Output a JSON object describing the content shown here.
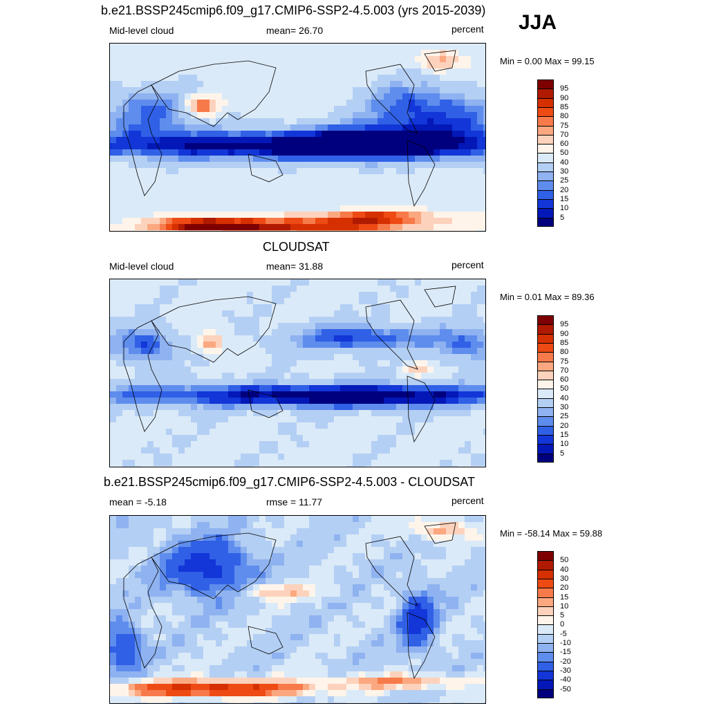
{
  "season": "JJA",
  "panels": [
    {
      "title": "b.e21.BSSP245cmip6.f09_g17.CMIP6-SSP2-4.5.003 (yrs 2015-2039)",
      "left_label": "Mid-level cloud",
      "center_label": "mean=  26.70",
      "right_label": "percent",
      "minmax": "Min =   0.00 Max =  99.15",
      "colorbar": {
        "labels": [
          "95",
          "90",
          "85",
          "80",
          "75",
          "70",
          "60",
          "50",
          "40",
          "30",
          "25",
          "20",
          "15",
          "10",
          "5"
        ],
        "colors": [
          "#7f0000",
          "#b01a00",
          "#d63000",
          "#ee4a14",
          "#f77a4a",
          "#fba880",
          "#fdd2bc",
          "#fff4ea",
          "#dbeaf8",
          "#b4cff4",
          "#8fb2f0",
          "#5f8ded",
          "#3060e6",
          "#1236d8",
          "#0418b8",
          "#00007f"
        ]
      },
      "field": "model"
    },
    {
      "title": "CLOUDSAT",
      "left_label": "Mid-level cloud",
      "center_label": "mean=  31.88",
      "right_label": "percent",
      "minmax": "Min =   0.01 Max =  89.36",
      "colorbar": {
        "labels": [
          "95",
          "90",
          "85",
          "80",
          "75",
          "70",
          "60",
          "50",
          "40",
          "30",
          "25",
          "20",
          "15",
          "10",
          "5"
        ],
        "colors": [
          "#7f0000",
          "#b01a00",
          "#d63000",
          "#ee4a14",
          "#f77a4a",
          "#fba880",
          "#fdd2bc",
          "#fff4ea",
          "#dbeaf8",
          "#b4cff4",
          "#8fb2f0",
          "#5f8ded",
          "#3060e6",
          "#1236d8",
          "#0418b8",
          "#00007f"
        ]
      },
      "field": "obs"
    },
    {
      "title": "b.e21.BSSP245cmip6.f09_g17.CMIP6-SSP2-4.5.003 - CLOUDSAT",
      "left_label": "mean =  -5.18",
      "center_label": "rmse =  11.77",
      "right_label": "percent",
      "minmax": "Min = -58.14 Max =  59.88",
      "colorbar": {
        "labels": [
          "50",
          "40",
          "30",
          "20",
          "15",
          "10",
          "5",
          "0",
          "-5",
          "-10",
          "-15",
          "-20",
          "-30",
          "-40",
          "-50"
        ],
        "colors": [
          "#7f0000",
          "#b01a00",
          "#d63000",
          "#ee4a14",
          "#f77a4a",
          "#fba880",
          "#fdd2bc",
          "#fff4ea",
          "#dbeaf8",
          "#b4cff4",
          "#8fb2f0",
          "#5f8ded",
          "#3060e6",
          "#1236d8",
          "#0418b8",
          "#00007f"
        ]
      },
      "field": "diff"
    }
  ]
}
